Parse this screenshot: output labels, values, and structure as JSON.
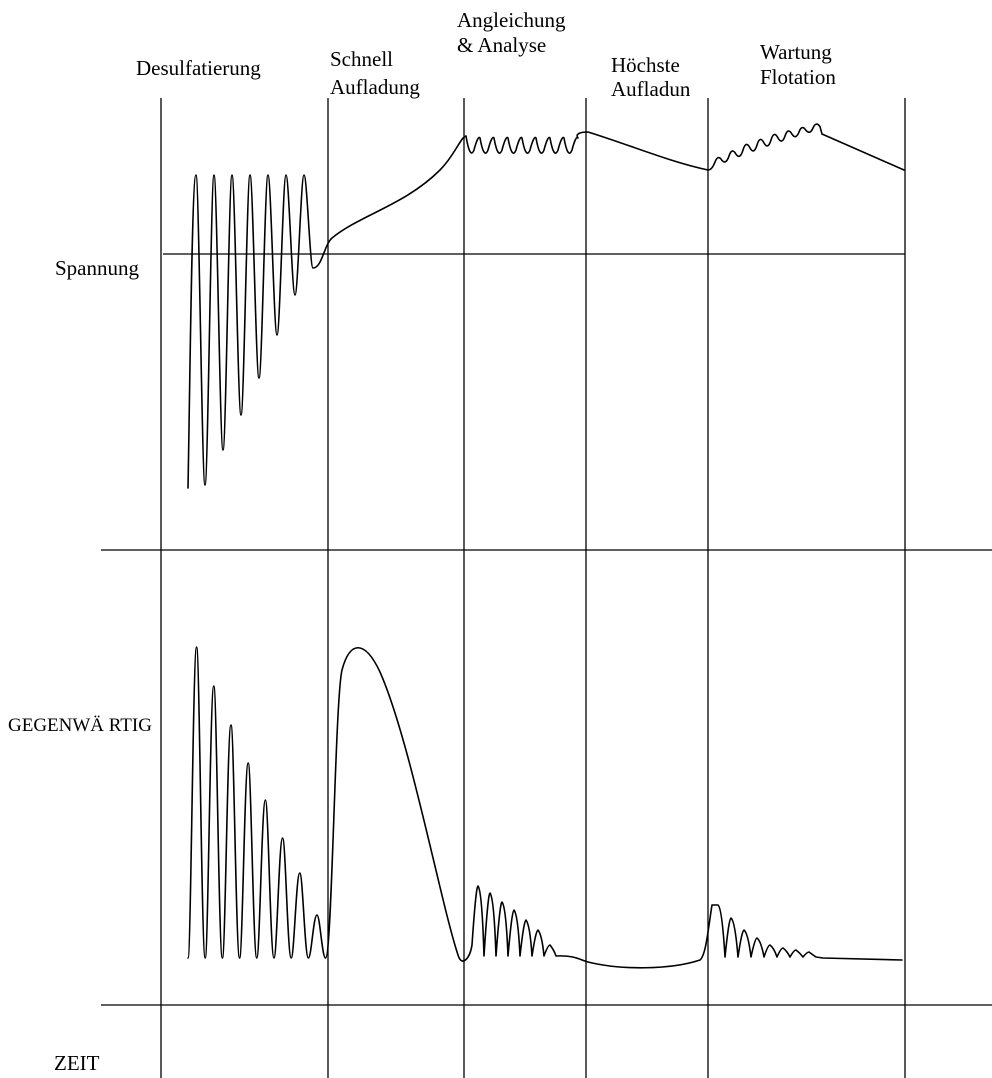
{
  "phases": [
    {
      "id": "desulfation",
      "lines": [
        "Desulfatierung"
      ]
    },
    {
      "id": "fast-charge",
      "lines": [
        "Schnell",
        "Aufladung"
      ]
    },
    {
      "id": "equalization",
      "lines": [
        "Angleichung",
        "& Analyse"
      ]
    },
    {
      "id": "peak-charge",
      "lines": [
        "Höchste",
        "Aufladun"
      ]
    },
    {
      "id": "maintenance",
      "lines": [
        "Wartung",
        "Flotation"
      ]
    }
  ],
  "axes": {
    "voltage_label": "Spannung",
    "current_label": "GEGENWÄ RTIG",
    "time_label": "ZEIT"
  },
  "colors": {
    "stroke": "#000000",
    "background": "#ffffff"
  }
}
